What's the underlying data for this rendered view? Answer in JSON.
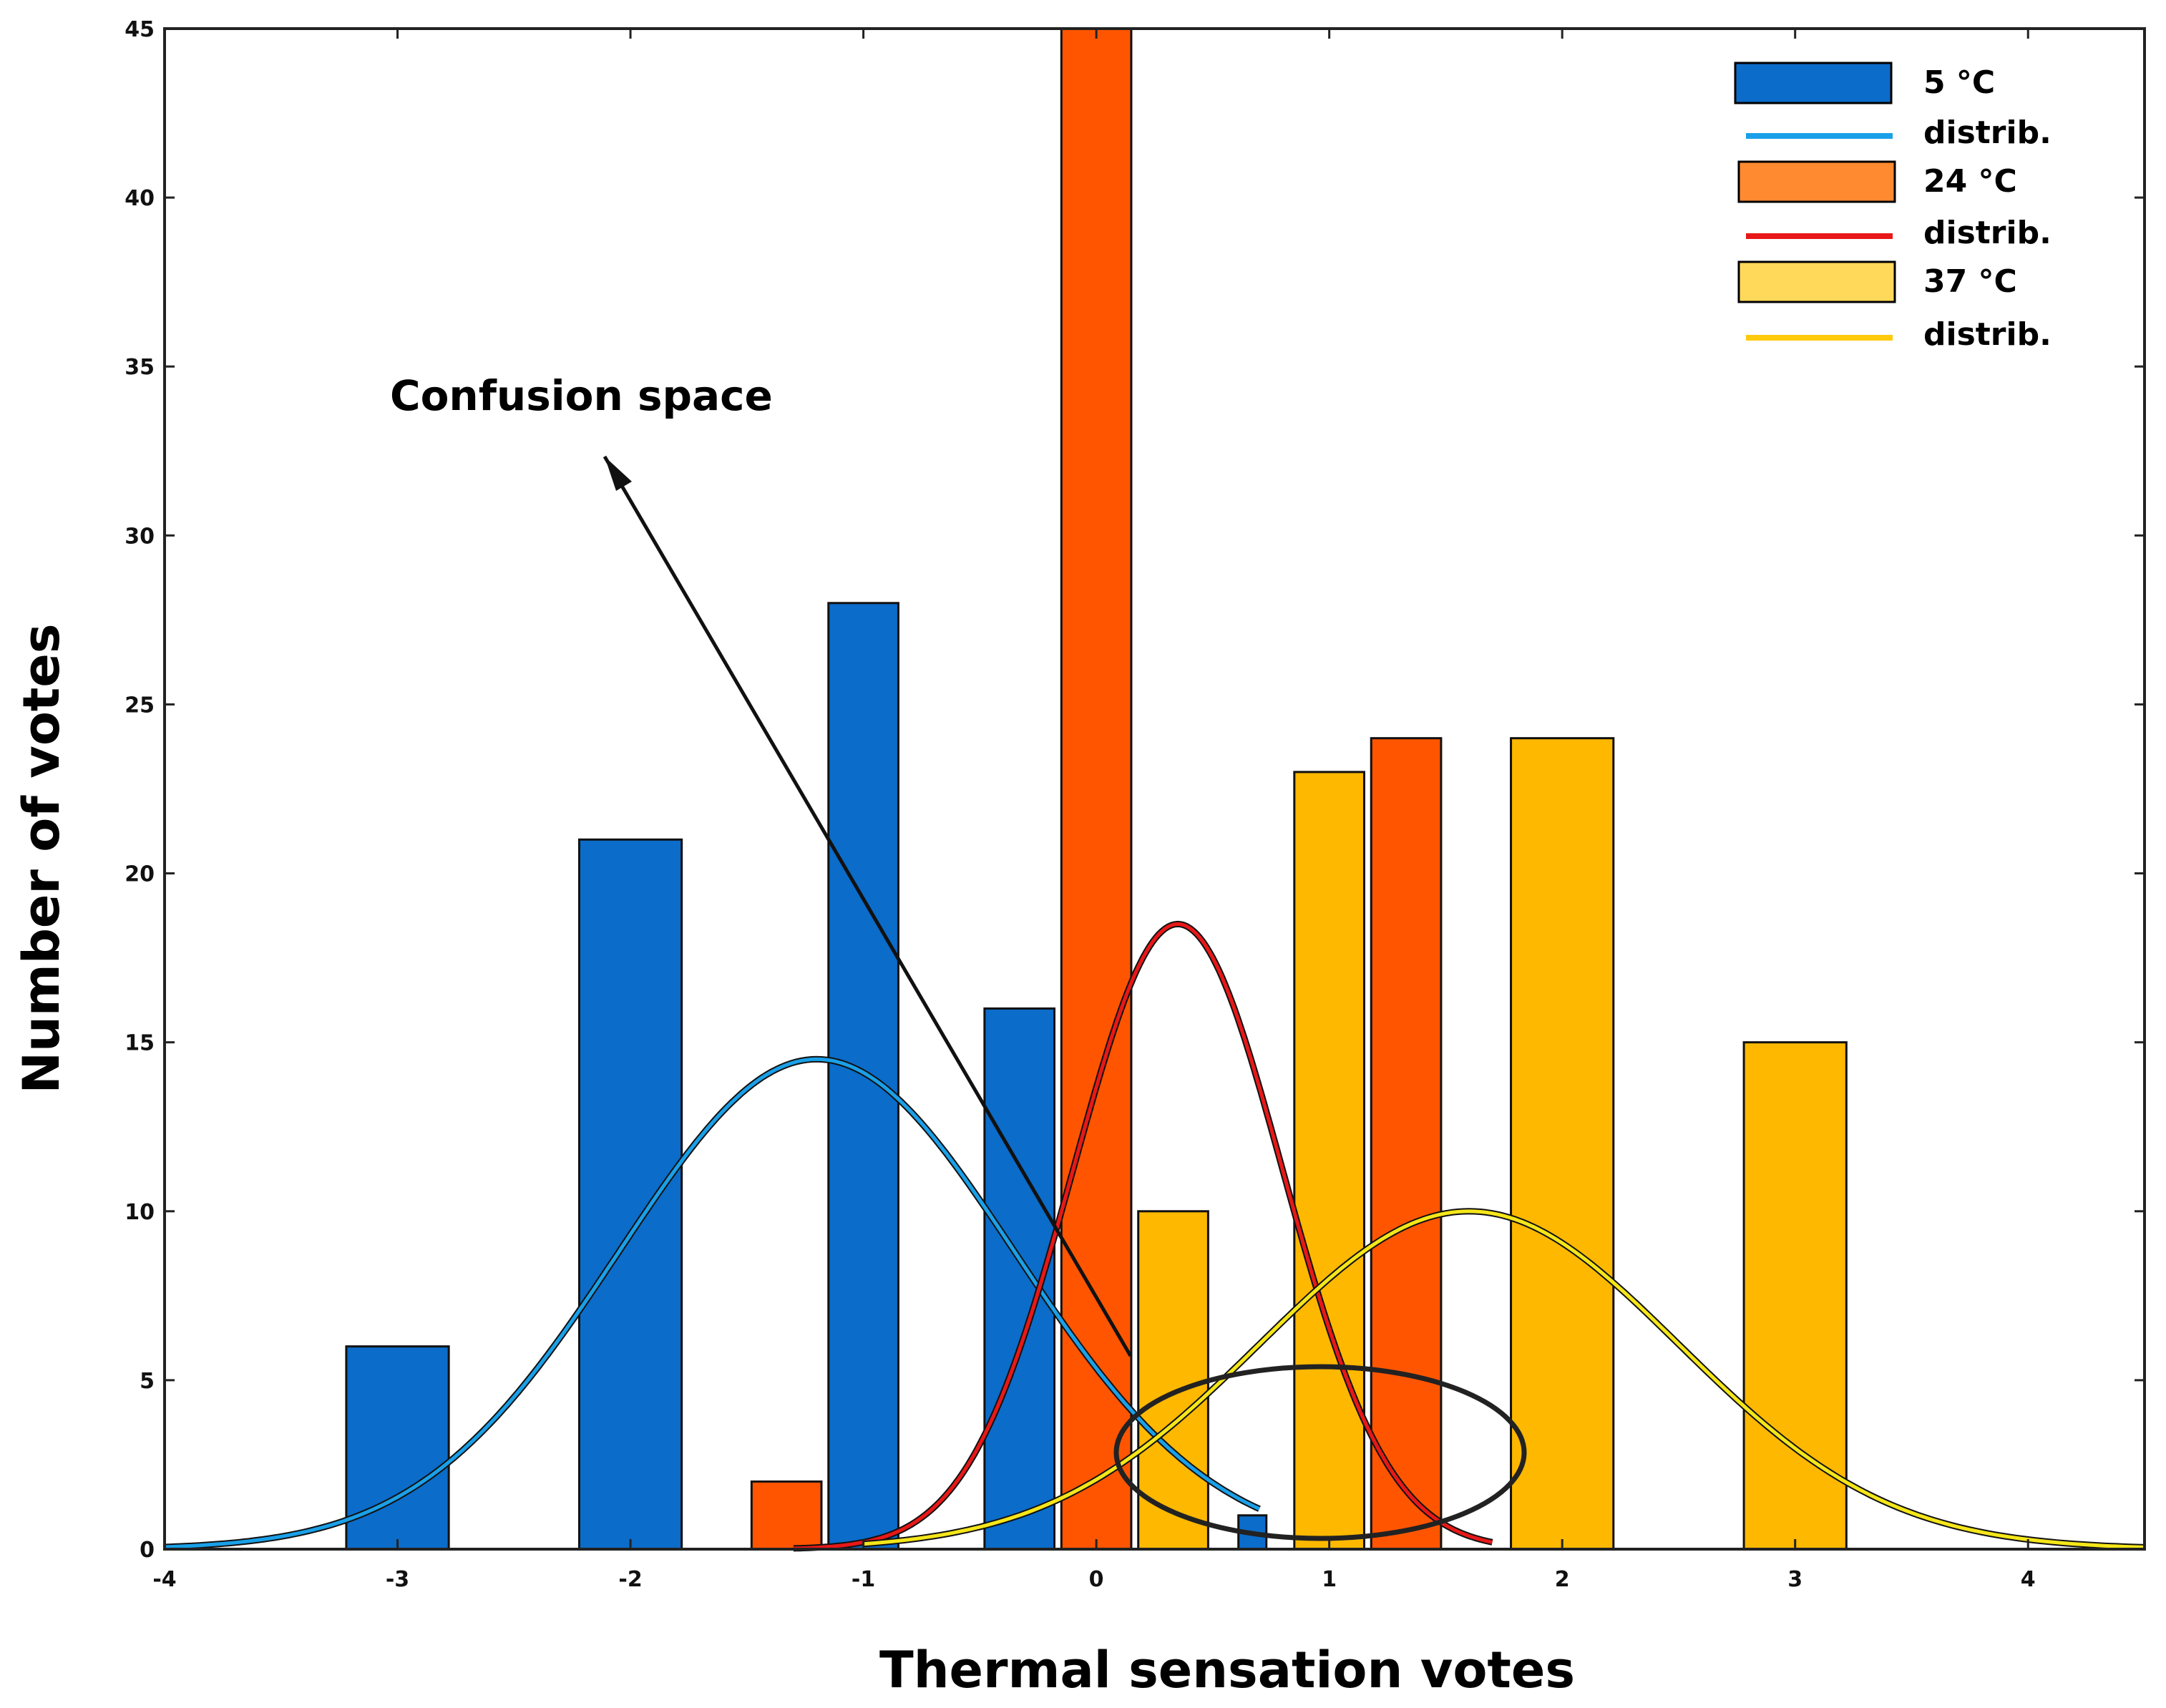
{
  "chart_data": {
    "type": "bar",
    "title": "",
    "xlabel": "Thermal sensation votes",
    "ylabel": "Number of votes",
    "xlim": [
      -4,
      4.5
    ],
    "ylim": [
      0,
      45
    ],
    "xticks": [
      "-4",
      "-3",
      "-2",
      "-1",
      "0",
      "1",
      "2",
      "3",
      "4"
    ],
    "yticks": [
      "0",
      "5",
      "10",
      "15",
      "20",
      "25",
      "30",
      "35",
      "40",
      "45"
    ],
    "legend_position": "top-right",
    "series": [
      {
        "name": "5 °C",
        "color": "#0b6cc9",
        "x": [
          -3,
          -2,
          -1,
          0,
          1
        ],
        "values": [
          6,
          21,
          28,
          16,
          1
        ],
        "distribution": {
          "label": "distrib.",
          "color": "#1aa0e8",
          "mean": -1.2,
          "sd": 0.85,
          "peak": 14.5,
          "x_range": [
            -4,
            0.7
          ]
        }
      },
      {
        "name": "24 °C",
        "color": "#ff5500",
        "x": [
          -1,
          0,
          1
        ],
        "values": [
          2,
          45,
          24
        ],
        "distribution": {
          "label": "distrib.",
          "color": "#e81818",
          "mean": 0.35,
          "sd": 0.45,
          "peak": 18.5,
          "x_range": [
            -1.3,
            1.7
          ]
        }
      },
      {
        "name": "37 °C",
        "color": "#ffb800",
        "x": [
          0,
          1,
          2,
          3
        ],
        "values": [
          10,
          23,
          24,
          15
        ],
        "distribution": {
          "label": "distrib.",
          "color": "#f5e619",
          "mean": 1.6,
          "sd": 0.9,
          "peak": 10,
          "x_range": [
            -1,
            4.5
          ]
        }
      }
    ],
    "annotations": [
      {
        "text": "Confusion space",
        "type": "arrow-and-ellipse"
      }
    ]
  }
}
